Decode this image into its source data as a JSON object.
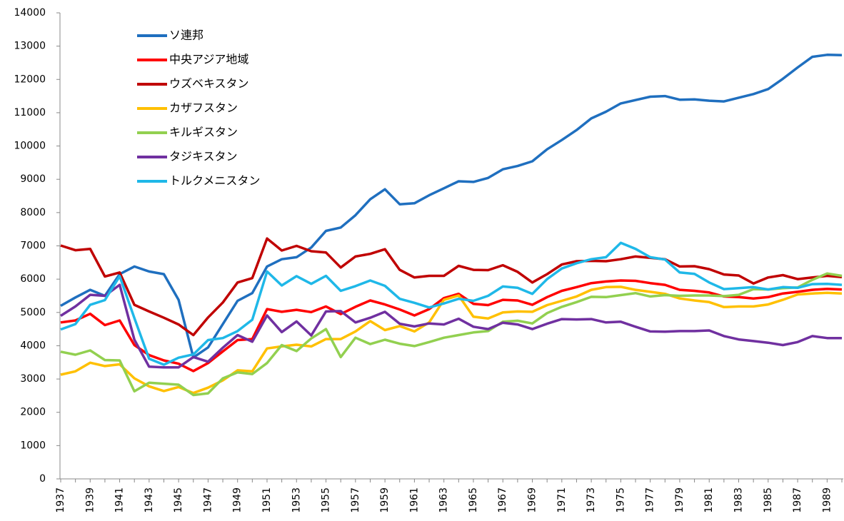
{
  "chart_data": {
    "type": "line",
    "categories": [
      "1937",
      null,
      "1939",
      null,
      "1941",
      null,
      "1943",
      null,
      "1945",
      null,
      "1947",
      null,
      "1949",
      null,
      "1951",
      null,
      "1953",
      null,
      "1955",
      null,
      "1957",
      null,
      "1959",
      null,
      "1961",
      null,
      "1963",
      null,
      "1965",
      null,
      "1967",
      null,
      "1969",
      null,
      "1971",
      null,
      "1973",
      null,
      "1975",
      null,
      "1977",
      null,
      "1979",
      null,
      "1981",
      null,
      "1983",
      null,
      "1985",
      null,
      "1987",
      null,
      "1989",
      null
    ],
    "series": [
      {
        "name": "ソ連邦",
        "color": "#1f6fbf",
        "values": [
          5200,
          5450,
          5680,
          5500,
          6150,
          6380,
          6230,
          6150,
          5380,
          3650,
          3950,
          4650,
          5350,
          5580,
          6380,
          6600,
          6660,
          6950,
          7450,
          7550,
          7920,
          8400,
          8700,
          8250,
          8280,
          8520,
          8730,
          8940,
          8920,
          9040,
          9300,
          9400,
          9540,
          9900,
          10180,
          10480,
          10830,
          11030,
          11280,
          11380,
          11480,
          11500,
          11390,
          11400,
          11360,
          11340,
          11450,
          11560,
          11710,
          12020,
          12360,
          12680,
          12740,
          12730
        ]
      },
      {
        "name": "中央アジア地域",
        "color": "#ff0000",
        "values": [
          4700,
          4760,
          4960,
          4620,
          4760,
          4020,
          3720,
          3560,
          3460,
          3240,
          3480,
          3830,
          4170,
          4200,
          5100,
          5020,
          5080,
          5010,
          5180,
          4950,
          5170,
          5360,
          5240,
          5090,
          4910,
          5100,
          5430,
          5560,
          5260,
          5220,
          5380,
          5360,
          5230,
          5460,
          5650,
          5760,
          5880,
          5930,
          5960,
          5950,
          5880,
          5830,
          5680,
          5650,
          5600,
          5480,
          5460,
          5420,
          5460,
          5570,
          5620,
          5680,
          5710,
          5690
        ]
      },
      {
        "name": "ウズベキスタン",
        "color": "#c00000",
        "values": [
          7010,
          6870,
          6910,
          6080,
          6200,
          5230,
          5030,
          4840,
          4640,
          4320,
          4850,
          5300,
          5900,
          6030,
          7220,
          6860,
          7000,
          6840,
          6800,
          6350,
          6680,
          6760,
          6900,
          6280,
          6050,
          6100,
          6100,
          6400,
          6280,
          6270,
          6420,
          6220,
          5900,
          6150,
          6440,
          6540,
          6550,
          6540,
          6600,
          6680,
          6640,
          6600,
          6380,
          6390,
          6300,
          6140,
          6110,
          5870,
          6050,
          6120,
          6000,
          6050,
          6100,
          6060
        ]
      },
      {
        "name": "カザフスタン",
        "color": "#ffc000",
        "values": [
          3130,
          3230,
          3490,
          3390,
          3440,
          3020,
          2780,
          2640,
          2760,
          2580,
          2740,
          2960,
          3260,
          3230,
          3920,
          3980,
          4030,
          3980,
          4200,
          4200,
          4430,
          4740,
          4470,
          4590,
          4430,
          4700,
          5380,
          5510,
          4870,
          4820,
          5000,
          5030,
          5020,
          5220,
          5350,
          5480,
          5680,
          5760,
          5770,
          5680,
          5620,
          5560,
          5420,
          5360,
          5310,
          5160,
          5180,
          5180,
          5240,
          5380,
          5540,
          5570,
          5590,
          5570
        ]
      },
      {
        "name": "キルギスタン",
        "color": "#92d050",
        "values": [
          3820,
          3730,
          3860,
          3570,
          3560,
          2630,
          2890,
          2860,
          2830,
          2520,
          2570,
          3020,
          3200,
          3150,
          3480,
          4020,
          3840,
          4220,
          4500,
          3660,
          4240,
          4050,
          4180,
          4060,
          3990,
          4110,
          4240,
          4320,
          4400,
          4440,
          4720,
          4750,
          4670,
          4980,
          5170,
          5310,
          5470,
          5460,
          5520,
          5580,
          5480,
          5520,
          5500,
          5510,
          5510,
          5490,
          5530,
          5700,
          5690,
          5730,
          5750,
          5980,
          6170,
          6100
        ]
      },
      {
        "name": "タジキスタン",
        "color": "#7030a0",
        "values": [
          4900,
          5180,
          5530,
          5500,
          5830,
          4180,
          3370,
          3350,
          3350,
          3660,
          3520,
          3940,
          4320,
          4120,
          4910,
          4410,
          4730,
          4310,
          5030,
          5040,
          4700,
          4840,
          5020,
          4660,
          4580,
          4670,
          4640,
          4810,
          4570,
          4500,
          4690,
          4640,
          4500,
          4660,
          4800,
          4790,
          4800,
          4700,
          4720,
          4570,
          4430,
          4420,
          4440,
          4440,
          4460,
          4290,
          4190,
          4140,
          4090,
          4020,
          4110,
          4290,
          4230,
          4230
        ]
      },
      {
        "name": "トルクメニスタン",
        "color": "#1fb8e8",
        "values": [
          4490,
          4650,
          5230,
          5370,
          6090,
          4830,
          3610,
          3430,
          3640,
          3740,
          4170,
          4230,
          4440,
          4780,
          6230,
          5810,
          6090,
          5860,
          6100,
          5650,
          5790,
          5960,
          5800,
          5410,
          5290,
          5150,
          5270,
          5410,
          5350,
          5500,
          5780,
          5740,
          5560,
          6000,
          6320,
          6480,
          6600,
          6660,
          7090,
          6910,
          6660,
          6590,
          6200,
          6160,
          5900,
          5700,
          5730,
          5760,
          5690,
          5760,
          5740,
          5850,
          5860,
          5830
        ]
      }
    ],
    "ylim": [
      0,
      14000
    ],
    "yticks": [
      0,
      1000,
      2000,
      3000,
      4000,
      5000,
      6000,
      7000,
      8000,
      9000,
      10000,
      11000,
      12000,
      13000,
      14000
    ],
    "grid": false,
    "legend": "upper left"
  }
}
